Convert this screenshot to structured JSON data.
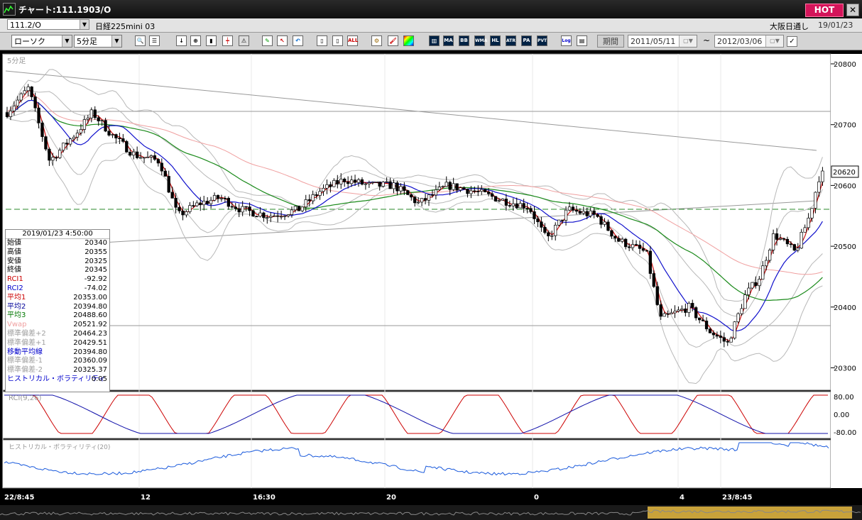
{
  "window": {
    "title": "チャート:111.1903/O",
    "hot_label": "HOT",
    "close_label": "✕"
  },
  "info": {
    "symbol": "111.2/O",
    "product": "日経225mini 03",
    "market": "大阪日通し",
    "date": "19/01/23"
  },
  "toolbar": {
    "chart_type": "ローソク",
    "timeframe": "5分足",
    "buttons": [
      "MA",
      "BB",
      "WMA",
      "HL",
      "ATR",
      "PA",
      "PVT",
      "Log"
    ],
    "all_label": "ALL",
    "period_label": "期間",
    "date_from": "2011/05/11",
    "date_to": "2012/03/06",
    "tilde": "~"
  },
  "main_chart": {
    "label": "5分足",
    "y_ticks": [
      "20800",
      "20700",
      "20600",
      "20500",
      "20400",
      "20300"
    ],
    "current_price": "20620",
    "x_labels": [
      "22/8:45",
      "12",
      "16:30",
      "20",
      "0",
      "4",
      "23/8:45"
    ]
  },
  "rci_panel": {
    "label": "RCI(9,26)",
    "ticks": [
      "80.00",
      "0.00",
      "-80.00"
    ]
  },
  "hv_panel": {
    "label": "ヒストリカル・ボラティリティ(20)"
  },
  "data_window": {
    "datetime": "2019/01/23 4:50:00",
    "rows": [
      {
        "label": "始値",
        "value": "20340",
        "color": "#000000"
      },
      {
        "label": "高値",
        "value": "20355",
        "color": "#000000"
      },
      {
        "label": "安値",
        "value": "20325",
        "color": "#000000"
      },
      {
        "label": "終値",
        "value": "20345",
        "color": "#000000"
      },
      {
        "label": "RCI1",
        "value": "-92.92",
        "color": "#cc0000"
      },
      {
        "label": "RCI2",
        "value": "-74.02",
        "color": "#0000cc"
      },
      {
        "label": "平均1",
        "value": "20353.00",
        "color": "#cc0000"
      },
      {
        "label": "平均2",
        "value": "20394.80",
        "color": "#000099"
      },
      {
        "label": "平均3",
        "value": "20488.60",
        "color": "#007700"
      },
      {
        "label": "Vwap",
        "value": "20521.92",
        "color": "#f0a0a0"
      },
      {
        "label": "標準偏差+2",
        "value": "20464.23",
        "color": "#a0a0a0"
      },
      {
        "label": "標準偏差+1",
        "value": "20429.51",
        "color": "#a0a0a0"
      },
      {
        "label": "移動平均線",
        "value": "20394.80",
        "color": "#0000cc"
      },
      {
        "label": "標準偏差-1",
        "value": "20360.09",
        "color": "#a0a0a0"
      },
      {
        "label": "標準偏差-2",
        "value": "20325.37",
        "color": "#a0a0a0"
      },
      {
        "label": "ヒストリカル・ボラティリティ",
        "value": "0.05",
        "color": "#0000cc"
      }
    ]
  }
}
